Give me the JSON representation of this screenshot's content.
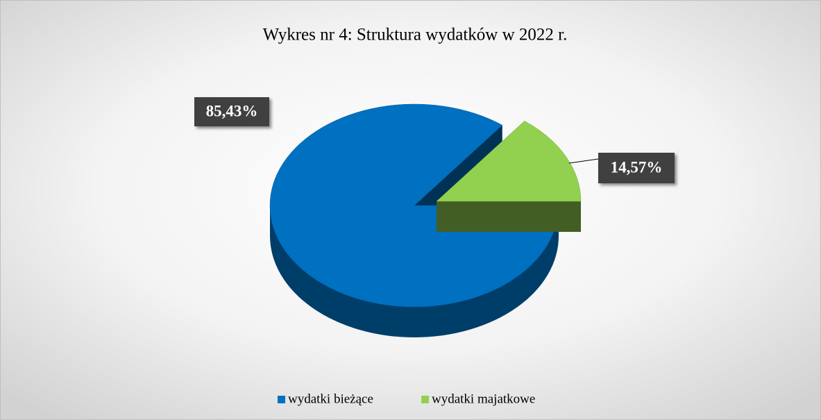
{
  "chart_data": {
    "type": "pie",
    "title": "Wykres nr 4: Struktura wydatków w 2022 r.",
    "categories": [
      "wydatki bieżące",
      "wydatki majatkowe"
    ],
    "values": [
      85.43,
      14.57
    ],
    "value_labels": [
      "85,43%",
      "14,57%"
    ],
    "colors": [
      "#0070c0",
      "#92d050"
    ],
    "legend": "bottom"
  }
}
